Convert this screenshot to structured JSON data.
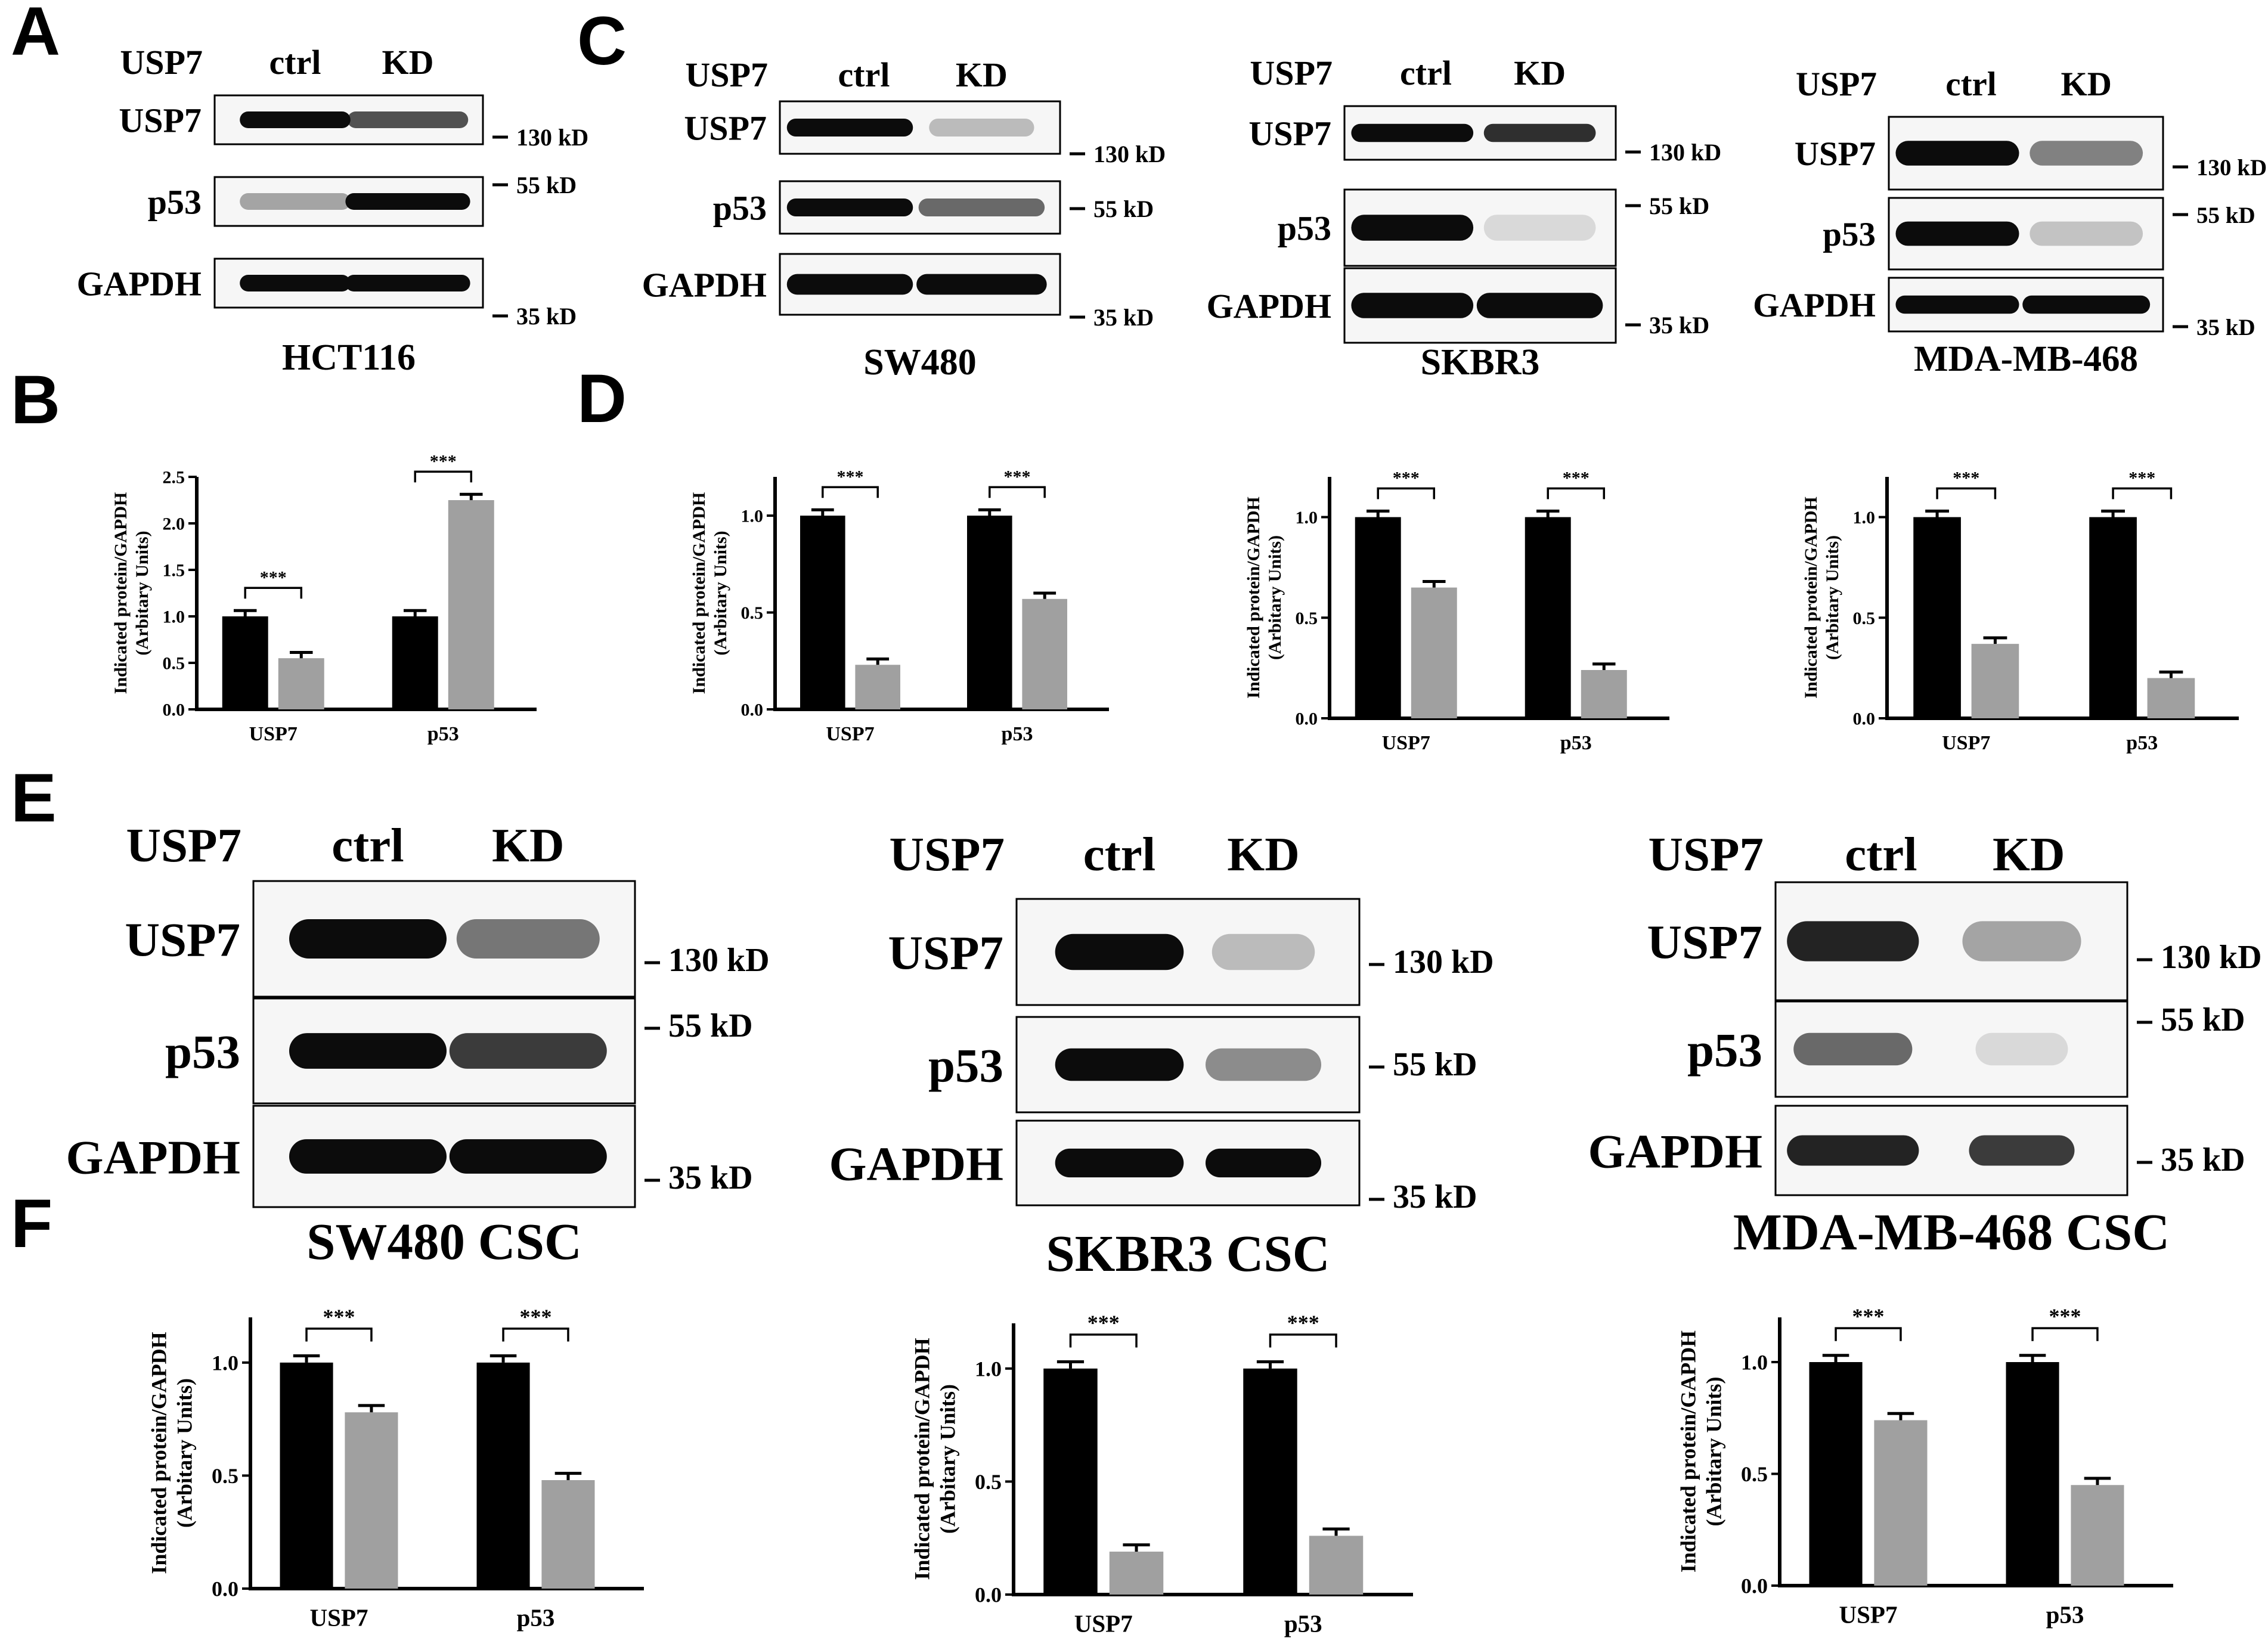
{
  "panel_letters": [
    "A",
    "B",
    "C",
    "D",
    "E",
    "F"
  ],
  "blot_labels": {
    "header": "USP7",
    "lanes": [
      "ctrl",
      "KD"
    ],
    "rows": [
      "USP7",
      "p53",
      "GAPDH"
    ],
    "mw": [
      "130 kD",
      "55 kD",
      "35 kD"
    ]
  },
  "blot_captions": [
    "HCT116",
    "SW480",
    "SKBR3",
    "MDA-MB-468",
    "SW480 CSC",
    "SKBR3 CSC",
    "MDA-MB-468 CSC"
  ],
  "colors": {
    "ctrl_bar": "#000000",
    "kd_bar": "#a0a0a0",
    "band": "#0c0c0c"
  },
  "chart_data": [
    {
      "type": "bar",
      "panel": "B",
      "categories": [
        "USP7",
        "p53"
      ],
      "series": [
        {
          "values": [
            1.0,
            1.0
          ]
        },
        {
          "values": [
            0.55,
            2.25
          ]
        }
      ],
      "ylabel": "Indicated protein/GAPDH\n(Arbitary Units)",
      "ylim": [
        0,
        2.5
      ],
      "yticks": [
        "0.0",
        "0.5",
        "1.0",
        "1.5",
        "2.0",
        "2.5"
      ],
      "significance": [
        "***",
        "***"
      ]
    },
    {
      "type": "bar",
      "panel": "D",
      "categories": [
        "USP7",
        "p53"
      ],
      "series": [
        {
          "values": [
            1.0,
            1.0
          ]
        },
        {
          "values": [
            0.23,
            0.57
          ]
        }
      ],
      "ylabel": "Indicated protein/GAPDH\n(Arbitary Units)",
      "ylim": [
        0,
        1.2
      ],
      "yticks": [
        "0.0",
        "0.5",
        "1.0"
      ],
      "significance": [
        "***",
        "***"
      ]
    },
    {
      "type": "bar",
      "panel": "D",
      "categories": [
        "USP7",
        "p53"
      ],
      "series": [
        {
          "values": [
            1.0,
            1.0
          ]
        },
        {
          "values": [
            0.65,
            0.24
          ]
        }
      ],
      "ylabel": "Indicated protein/GAPDH\n(Arbitary Units)",
      "ylim": [
        0,
        1.2
      ],
      "yticks": [
        "0.0",
        "0.5",
        "1.0"
      ],
      "significance": [
        "***",
        "***"
      ]
    },
    {
      "type": "bar",
      "panel": "D",
      "categories": [
        "USP7",
        "p53"
      ],
      "series": [
        {
          "values": [
            1.0,
            1.0
          ]
        },
        {
          "values": [
            0.37,
            0.2
          ]
        }
      ],
      "ylabel": "Indicated protein/GAPDH\n(Arbitary Units)",
      "ylim": [
        0,
        1.2
      ],
      "yticks": [
        "0.0",
        "0.5",
        "1.0"
      ],
      "significance": [
        "***",
        "***"
      ]
    },
    {
      "type": "bar",
      "panel": "F",
      "categories": [
        "USP7",
        "p53"
      ],
      "series": [
        {
          "values": [
            1.0,
            1.0
          ]
        },
        {
          "values": [
            0.78,
            0.48
          ]
        }
      ],
      "ylabel": "Indicated protein/GAPDH\n(Arbitary Units)",
      "ylim": [
        0,
        1.2
      ],
      "yticks": [
        "0.0",
        "0.5",
        "1.0"
      ],
      "significance": [
        "***",
        "***"
      ]
    },
    {
      "type": "bar",
      "panel": "F",
      "categories": [
        "USP7",
        "p53"
      ],
      "series": [
        {
          "values": [
            1.0,
            1.0
          ]
        },
        {
          "values": [
            0.19,
            0.26
          ]
        }
      ],
      "ylabel": "Indicated protein/GAPDH\n(Arbitary Units)",
      "ylim": [
        0,
        1.2
      ],
      "yticks": [
        "0.0",
        "0.5",
        "1.0"
      ],
      "significance": [
        "***",
        "***"
      ]
    },
    {
      "type": "bar",
      "panel": "F",
      "categories": [
        "USP7",
        "p53"
      ],
      "series": [
        {
          "values": [
            1.0,
            1.0
          ]
        },
        {
          "values": [
            0.74,
            0.45
          ]
        }
      ],
      "ylabel": "Indicated protein/GAPDH\n(Arbitary Units)",
      "ylim": [
        0,
        1.2
      ],
      "yticks": [
        "0.0",
        "0.5",
        "1.0"
      ],
      "significance": [
        "***",
        "***"
      ]
    }
  ]
}
